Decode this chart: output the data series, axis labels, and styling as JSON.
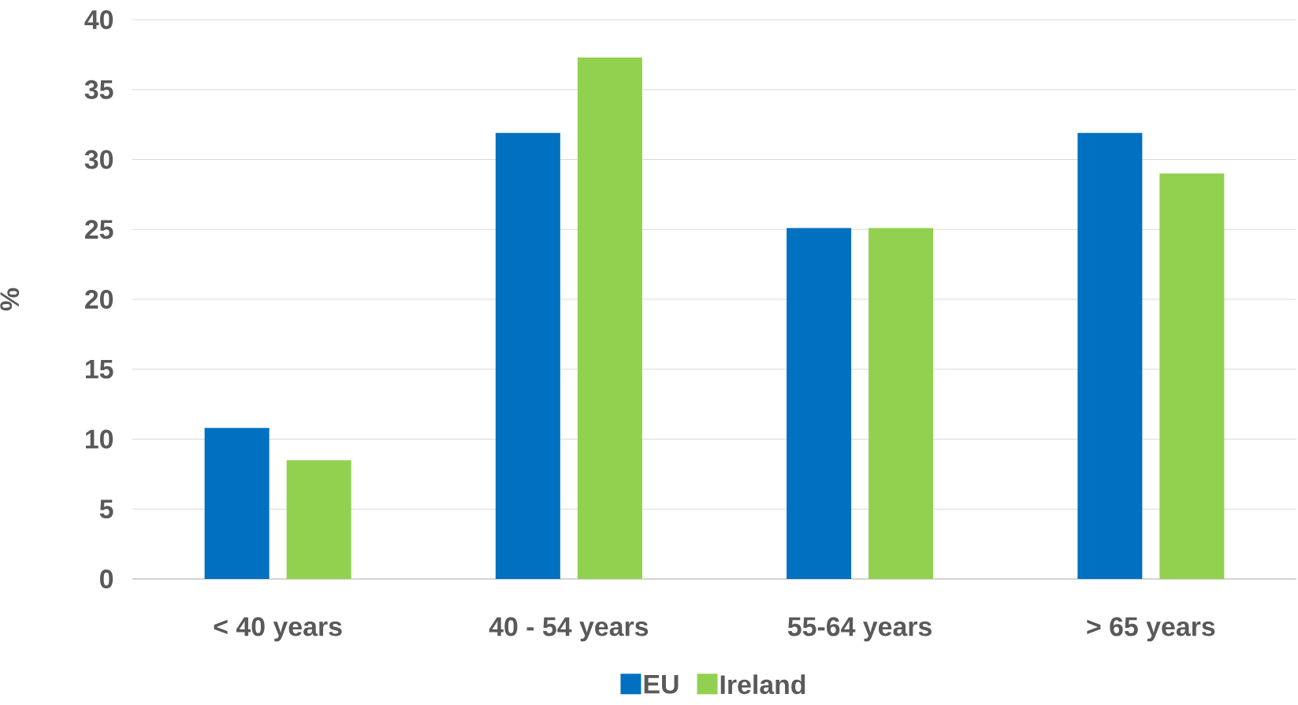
{
  "chart_data": {
    "type": "bar",
    "ylabel": "%",
    "categories": [
      "< 40 years",
      "40 - 54 years",
      "55-64 years",
      "> 65 years"
    ],
    "series": [
      {
        "name": "EU",
        "color": "#0070c0",
        "values": [
          10.8,
          31.9,
          25.1,
          31.9
        ]
      },
      {
        "name": "Ireland",
        "color": "#92d050",
        "values": [
          8.5,
          37.3,
          25.1,
          29.0
        ]
      }
    ],
    "ylim": [
      0,
      40
    ],
    "yticks": [
      0,
      5,
      10,
      15,
      20,
      25,
      30,
      35,
      40
    ],
    "grid": "y",
    "legend": "bottom"
  }
}
